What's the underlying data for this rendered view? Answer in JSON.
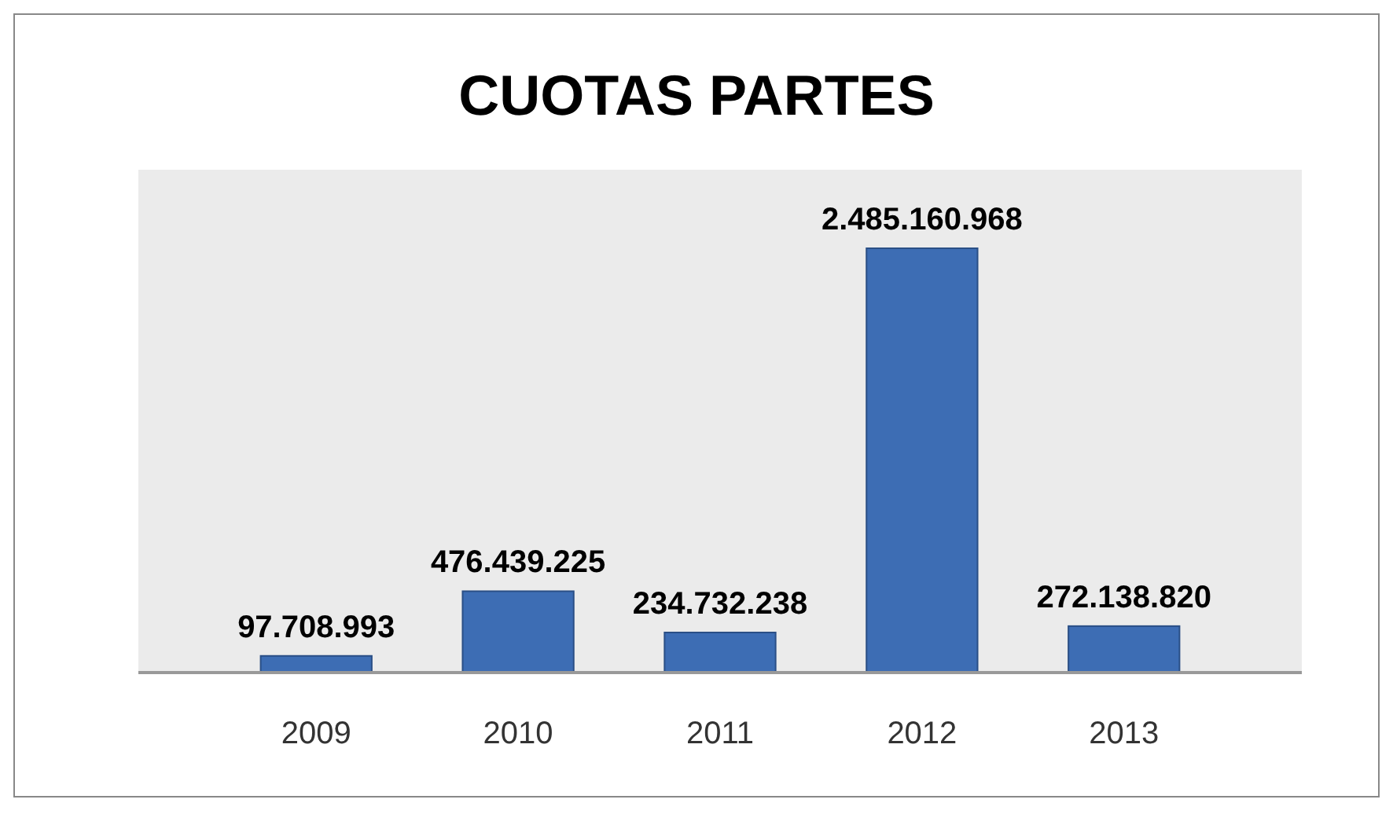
{
  "chart_data": {
    "type": "bar",
    "title": "CUOTAS PARTES",
    "categories": [
      "2009",
      "2010",
      "2011",
      "2012",
      "2013"
    ],
    "values": [
      97708993,
      476439225,
      234732238,
      2485160968,
      272138820
    ],
    "value_labels": [
      "97.708.993",
      "476.439.225",
      "234.732.238",
      "2.485.160.968",
      "272.138.820"
    ],
    "color": "#3d6db4"
  }
}
